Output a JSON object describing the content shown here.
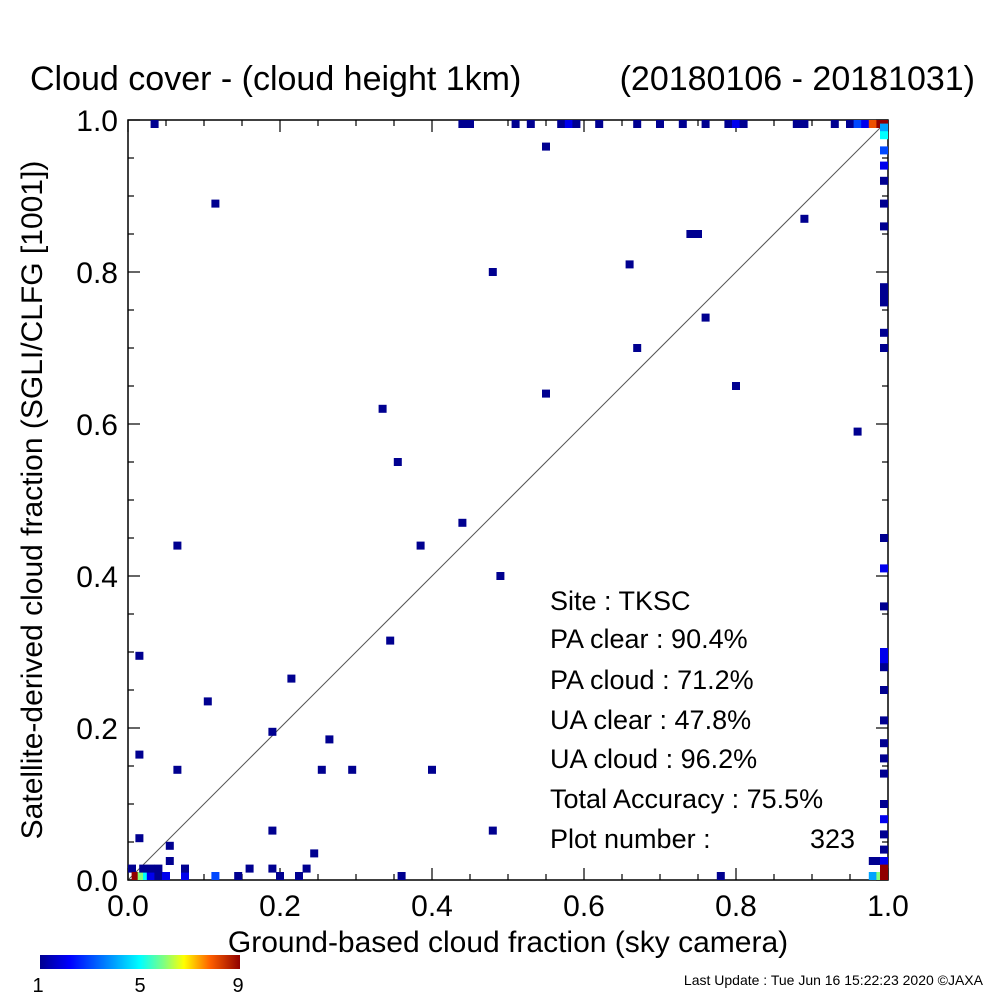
{
  "chart_data": {
    "type": "scatter",
    "title": "Cloud cover - (cloud height 1km)",
    "period": "(20180106 - 20181031)",
    "xlabel": "Ground-based cloud fraction (sky camera)",
    "ylabel": "Satellite-derived cloud fraction (SGLI/CLFG [1001])",
    "xlim": [
      0,
      1
    ],
    "ylim": [
      0,
      1
    ],
    "xticks": [
      "0.0",
      "0.2",
      "0.4",
      "0.6",
      "0.8",
      "1.0"
    ],
    "yticks": [
      "0.0",
      "0.2",
      "0.4",
      "0.6",
      "0.8",
      "1.0"
    ],
    "diagonal": true,
    "colorbar": {
      "min": 1,
      "mid": 5,
      "max": 9,
      "labels": [
        "1",
        "5",
        "9"
      ]
    },
    "points": [
      {
        "x": 0.003,
        "y": 0.015,
        "n": 1
      },
      {
        "x": 0.01,
        "y": 0.0,
        "n": 9
      },
      {
        "x": 0.018,
        "y": 0.0,
        "n": 6
      },
      {
        "x": 0.025,
        "y": 0.0,
        "n": 5
      },
      {
        "x": 0.03,
        "y": 0.0,
        "n": 2
      },
      {
        "x": 0.04,
        "y": 0.0,
        "n": 1
      },
      {
        "x": 0.05,
        "y": 0.0,
        "n": 2
      },
      {
        "x": 0.075,
        "y": 0.0,
        "n": 2
      },
      {
        "x": 0.115,
        "y": 0.0,
        "n": 3
      },
      {
        "x": 0.145,
        "y": 0.0,
        "n": 1
      },
      {
        "x": 0.2,
        "y": 0.0,
        "n": 1
      },
      {
        "x": 0.225,
        "y": 0.0,
        "n": 1
      },
      {
        "x": 0.36,
        "y": 0.0,
        "n": 1
      },
      {
        "x": 0.78,
        "y": 0.0,
        "n": 1
      },
      {
        "x": 0.02,
        "y": 0.015,
        "n": 1
      },
      {
        "x": 0.03,
        "y": 0.015,
        "n": 1
      },
      {
        "x": 0.04,
        "y": 0.015,
        "n": 1
      },
      {
        "x": 0.075,
        "y": 0.015,
        "n": 1
      },
      {
        "x": 0.16,
        "y": 0.015,
        "n": 1
      },
      {
        "x": 0.19,
        "y": 0.015,
        "n": 1
      },
      {
        "x": 0.235,
        "y": 0.015,
        "n": 1
      },
      {
        "x": 0.055,
        "y": 0.025,
        "n": 1
      },
      {
        "x": 0.245,
        "y": 0.035,
        "n": 1
      },
      {
        "x": 0.055,
        "y": 0.045,
        "n": 1
      },
      {
        "x": 0.015,
        "y": 0.055,
        "n": 1
      },
      {
        "x": 0.19,
        "y": 0.065,
        "n": 1
      },
      {
        "x": 0.48,
        "y": 0.065,
        "n": 1
      },
      {
        "x": 0.065,
        "y": 0.145,
        "n": 1
      },
      {
        "x": 0.255,
        "y": 0.145,
        "n": 1
      },
      {
        "x": 0.295,
        "y": 0.145,
        "n": 1
      },
      {
        "x": 0.4,
        "y": 0.145,
        "n": 1
      },
      {
        "x": 0.015,
        "y": 0.165,
        "n": 1
      },
      {
        "x": 0.265,
        "y": 0.185,
        "n": 1
      },
      {
        "x": 0.19,
        "y": 0.195,
        "n": 1
      },
      {
        "x": 0.105,
        "y": 0.235,
        "n": 1
      },
      {
        "x": 0.215,
        "y": 0.265,
        "n": 1
      },
      {
        "x": 0.015,
        "y": 0.295,
        "n": 1
      },
      {
        "x": 0.345,
        "y": 0.315,
        "n": 1
      },
      {
        "x": 0.49,
        "y": 0.4,
        "n": 1
      },
      {
        "x": 0.385,
        "y": 0.44,
        "n": 1
      },
      {
        "x": 0.065,
        "y": 0.44,
        "n": 1
      },
      {
        "x": 0.44,
        "y": 0.47,
        "n": 1
      },
      {
        "x": 0.355,
        "y": 0.55,
        "n": 1
      },
      {
        "x": 0.96,
        "y": 0.59,
        "n": 1
      },
      {
        "x": 0.335,
        "y": 0.62,
        "n": 1
      },
      {
        "x": 0.55,
        "y": 0.64,
        "n": 1
      },
      {
        "x": 0.8,
        "y": 0.65,
        "n": 1
      },
      {
        "x": 0.67,
        "y": 0.7,
        "n": 1
      },
      {
        "x": 0.76,
        "y": 0.74,
        "n": 1
      },
      {
        "x": 0.48,
        "y": 0.8,
        "n": 1
      },
      {
        "x": 0.66,
        "y": 0.81,
        "n": 1
      },
      {
        "x": 0.74,
        "y": 0.85,
        "n": 1
      },
      {
        "x": 0.75,
        "y": 0.85,
        "n": 1
      },
      {
        "x": 0.89,
        "y": 0.87,
        "n": 1
      },
      {
        "x": 0.115,
        "y": 0.89,
        "n": 1
      },
      {
        "x": 0.55,
        "y": 0.965,
        "n": 1
      },
      {
        "x": 0.035,
        "y": 1.0,
        "n": 1
      },
      {
        "x": 0.44,
        "y": 1.0,
        "n": 1
      },
      {
        "x": 0.45,
        "y": 1.0,
        "n": 1
      },
      {
        "x": 0.51,
        "y": 1.0,
        "n": 1
      },
      {
        "x": 0.53,
        "y": 1.0,
        "n": 1
      },
      {
        "x": 0.57,
        "y": 1.0,
        "n": 1
      },
      {
        "x": 0.58,
        "y": 1.0,
        "n": 2
      },
      {
        "x": 0.59,
        "y": 1.0,
        "n": 1
      },
      {
        "x": 0.62,
        "y": 1.0,
        "n": 1
      },
      {
        "x": 0.67,
        "y": 1.0,
        "n": 1
      },
      {
        "x": 0.7,
        "y": 1.0,
        "n": 1
      },
      {
        "x": 0.73,
        "y": 1.0,
        "n": 1
      },
      {
        "x": 0.76,
        "y": 1.0,
        "n": 1
      },
      {
        "x": 0.79,
        "y": 1.0,
        "n": 1
      },
      {
        "x": 0.8,
        "y": 1.0,
        "n": 2
      },
      {
        "x": 0.81,
        "y": 1.0,
        "n": 1
      },
      {
        "x": 0.88,
        "y": 1.0,
        "n": 1
      },
      {
        "x": 0.89,
        "y": 1.0,
        "n": 1
      },
      {
        "x": 0.93,
        "y": 1.0,
        "n": 1
      },
      {
        "x": 0.95,
        "y": 1.0,
        "n": 1
      },
      {
        "x": 0.96,
        "y": 1.0,
        "n": 3
      },
      {
        "x": 0.97,
        "y": 1.0,
        "n": 2
      },
      {
        "x": 0.98,
        "y": 1.0,
        "n": 8
      },
      {
        "x": 0.99,
        "y": 1.0,
        "n": 9
      },
      {
        "x": 1.0,
        "y": 1.0,
        "n": 9
      },
      {
        "x": 1.0,
        "y": 0.99,
        "n": 4
      },
      {
        "x": 1.0,
        "y": 0.98,
        "n": 5
      },
      {
        "x": 1.0,
        "y": 0.96,
        "n": 3
      },
      {
        "x": 1.0,
        "y": 0.94,
        "n": 2
      },
      {
        "x": 1.0,
        "y": 0.92,
        "n": 1
      },
      {
        "x": 1.0,
        "y": 0.89,
        "n": 1
      },
      {
        "x": 1.0,
        "y": 0.86,
        "n": 1
      },
      {
        "x": 1.0,
        "y": 0.78,
        "n": 1
      },
      {
        "x": 1.0,
        "y": 0.77,
        "n": 1
      },
      {
        "x": 1.0,
        "y": 0.76,
        "n": 1
      },
      {
        "x": 1.0,
        "y": 0.72,
        "n": 1
      },
      {
        "x": 1.0,
        "y": 0.7,
        "n": 1
      },
      {
        "x": 1.0,
        "y": 0.45,
        "n": 1
      },
      {
        "x": 1.0,
        "y": 0.41,
        "n": 2
      },
      {
        "x": 1.0,
        "y": 0.36,
        "n": 1
      },
      {
        "x": 1.0,
        "y": 0.3,
        "n": 2
      },
      {
        "x": 1.0,
        "y": 0.29,
        "n": 2
      },
      {
        "x": 1.0,
        "y": 0.28,
        "n": 1
      },
      {
        "x": 1.0,
        "y": 0.25,
        "n": 1
      },
      {
        "x": 1.0,
        "y": 0.21,
        "n": 1
      },
      {
        "x": 1.0,
        "y": 0.18,
        "n": 1
      },
      {
        "x": 1.0,
        "y": 0.16,
        "n": 1
      },
      {
        "x": 1.0,
        "y": 0.14,
        "n": 1
      },
      {
        "x": 1.0,
        "y": 0.1,
        "n": 1
      },
      {
        "x": 1.0,
        "y": 0.08,
        "n": 2
      },
      {
        "x": 1.0,
        "y": 0.06,
        "n": 1
      },
      {
        "x": 1.0,
        "y": 0.04,
        "n": 1
      },
      {
        "x": 0.98,
        "y": 0.025,
        "n": 1
      },
      {
        "x": 0.99,
        "y": 0.025,
        "n": 1
      },
      {
        "x": 1.0,
        "y": 0.025,
        "n": 2
      },
      {
        "x": 1.0,
        "y": 0.015,
        "n": 9
      },
      {
        "x": 0.98,
        "y": 0.0,
        "n": 4
      },
      {
        "x": 0.99,
        "y": 0.0,
        "n": 6
      },
      {
        "x": 1.0,
        "y": 0.0,
        "n": 9
      }
    ]
  },
  "stats": {
    "site": "Site : TKSC",
    "pa_clear": "PA clear :  90.4%",
    "pa_cloud": "PA cloud :  71.2%",
    "ua_clear": "UA clear :  47.8%",
    "ua_cloud": "UA cloud :  96.2%",
    "total_accuracy": "Total Accuracy :  75.5%",
    "plot_number_label": "Plot number :",
    "plot_number_value": "323"
  },
  "footer": "Last Update : Tue Jun 16 15:22:23 2020  ©JAXA",
  "colors": {
    "axis": "#000000",
    "diagonal": "#555555"
  }
}
